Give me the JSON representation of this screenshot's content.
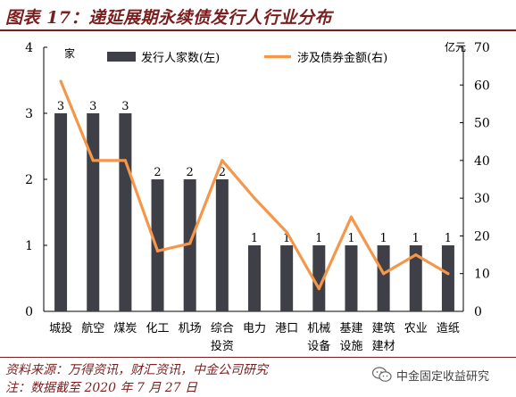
{
  "title": "图表 17：递延展期永续债发行人行业分布",
  "footer": {
    "source": "资料来源：万得资讯，财汇资讯，中金公司研究",
    "note": "注：数据截至 2020 年 7 月 27 日"
  },
  "watermark": {
    "text": "中金固定收益研究",
    "icon": "wechat-icon"
  },
  "colors": {
    "bar": "#3f3f47",
    "line": "#f5974a",
    "title": "#7a1f1f"
  },
  "chart_data": {
    "type": "bar",
    "categories": [
      "城投",
      "航空",
      "煤炭",
      "化工",
      "机场",
      "综合\n投资",
      "电力",
      "港口",
      "机械\n设备",
      "基建\n设施",
      "建筑\n建材",
      "农业",
      "造纸"
    ],
    "series": [
      {
        "name": "发行人家数(左)",
        "type": "bar",
        "axis": "left",
        "values": [
          3,
          3,
          3,
          2,
          2,
          2,
          1,
          1,
          1,
          1,
          1,
          1,
          1
        ],
        "data_labels": [
          "3",
          "3",
          "3",
          "2",
          "2",
          "2",
          "1",
          "1",
          "1",
          "1",
          "1",
          "1",
          "1"
        ]
      },
      {
        "name": "涉及债券金额(右)",
        "type": "line",
        "axis": "right",
        "values": [
          61,
          40,
          40,
          16,
          18,
          40,
          30,
          21,
          6,
          25,
          10,
          15,
          10
        ]
      }
    ],
    "y_left": {
      "unit": "家",
      "min": 0,
      "max": 4,
      "ticks": [
        "0",
        "1",
        "2",
        "3",
        "4"
      ]
    },
    "y_right": {
      "unit": "亿元",
      "min": 0,
      "max": 70,
      "ticks": [
        "0",
        "10",
        "20",
        "30",
        "40",
        "50",
        "60",
        "70"
      ]
    },
    "grid": false,
    "legend": "top"
  }
}
